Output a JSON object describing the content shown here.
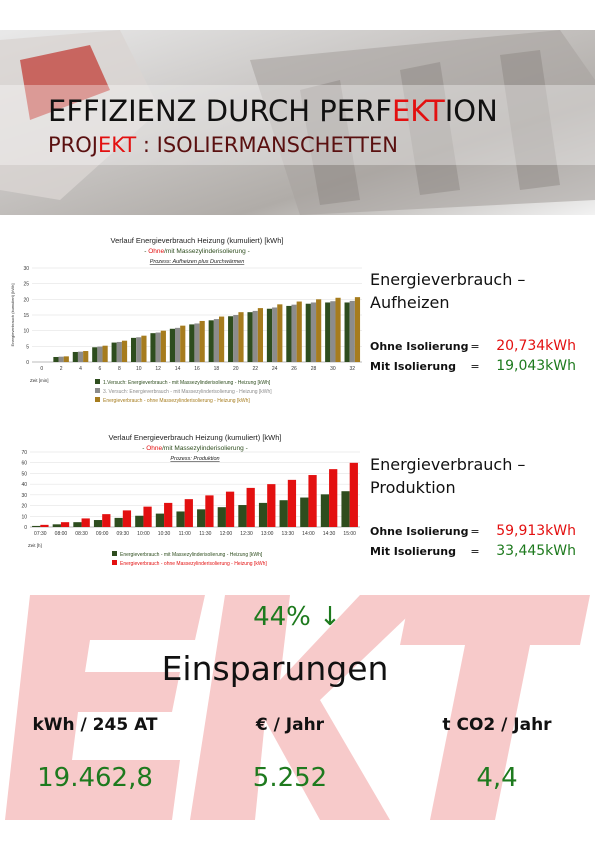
{
  "header": {
    "title_parts": [
      "EFFIZIENZ DURCH PERF",
      "EKT",
      "ION"
    ],
    "subtitle_parts": [
      "PROJ",
      "EKT",
      " : ISOLIERMANSCHETTEN"
    ]
  },
  "chart_1": {
    "type": "bar",
    "title": "Verlauf Energieverbrauch Heizung (kumuliert) [kWh]",
    "subtitle_parts": [
      "- ",
      "Ohne",
      "/mit Massezylinderisolierung -"
    ],
    "note": "Prozess: Aufheizen plus Durchwärmen",
    "x_label": "Zeit [min]",
    "y_label": "Energieverbrauch (kumuliert) [kWh]",
    "categories": [
      "0",
      "2",
      "4",
      "6",
      "8",
      "10",
      "12",
      "14",
      "16",
      "18",
      "20",
      "22",
      "24",
      "26",
      "28",
      "30",
      "32"
    ],
    "series": [
      {
        "name": "1.Versuch: Energieverbrauch - mit Massezylinderisolierung - Heizung [kWh]",
        "color": "#2e4d1e",
        "values": [
          0,
          1.6,
          3.2,
          4.7,
          6.2,
          7.7,
          9.2,
          10.6,
          12.0,
          13.3,
          14.6,
          15.9,
          17.0,
          17.9,
          18.6,
          19.0,
          19.0
        ]
      },
      {
        "name": "3. Versuch: Energieverbrauch - mit Massezylinderisolierung - Heizung [kWh]",
        "color": "#8c8c8c",
        "values": [
          0,
          1.7,
          3.3,
          4.9,
          6.4,
          7.9,
          9.4,
          10.9,
          12.3,
          13.7,
          15.0,
          16.3,
          17.4,
          18.3,
          19.0,
          19.4,
          19.5
        ]
      },
      {
        "name": "Energieverbrauch - ohne Massezylinderisolierung - Heizung [kWh]",
        "color": "#a67c1e",
        "values": [
          0,
          1.8,
          3.5,
          5.2,
          6.8,
          8.4,
          10.0,
          11.6,
          13.1,
          14.5,
          15.9,
          17.2,
          18.4,
          19.3,
          20.0,
          20.5,
          20.7
        ]
      }
    ],
    "ylim": [
      0,
      30
    ],
    "yticks": [
      0,
      5,
      10,
      15,
      20,
      25,
      30
    ],
    "grid": true
  },
  "chart_2": {
    "type": "bar",
    "title": "Verlauf Energieverbrauch Heizung (kumuliert) [kWh]",
    "subtitle_parts": [
      "- ",
      "Ohne",
      "/mit Massezylinderisolierung -"
    ],
    "note": "Prozess: Produktion",
    "x_label": "Zeit [h]",
    "categories": [
      "07:30",
      "08:00",
      "08:30",
      "09:00",
      "09:30",
      "10:00",
      "10:30",
      "11:00",
      "11:30",
      "12:00",
      "12:30",
      "13:00",
      "13:30",
      "14:00",
      "14:30",
      "15:00"
    ],
    "series": [
      {
        "name": "Energieverbrauch - mit Massezylinderisolierung - Heizung [kWh]",
        "color": "#2e4d1e",
        "values": [
          1,
          2.5,
          4.5,
          6.5,
          8.5,
          10.5,
          12.5,
          14.5,
          16.5,
          18.5,
          20.5,
          22.5,
          25,
          27.5,
          30.5,
          33.4
        ]
      },
      {
        "name": "Energieverbrauch - ohne Massezylinderisolierung - Heizung [kWh]",
        "color": "#e31010",
        "values": [
          2,
          4.5,
          8,
          12,
          15.5,
          19,
          22.5,
          26,
          29.5,
          33,
          36.5,
          40,
          44,
          48.5,
          54,
          59.9
        ]
      }
    ],
    "ylim": [
      0,
      70
    ],
    "yticks": [
      0,
      10,
      20,
      30,
      40,
      50,
      60,
      70
    ],
    "grid": true
  },
  "summary_1": {
    "heading_lines": [
      "Energieverbrauch –",
      "Aufheizen"
    ],
    "rows": [
      {
        "label": "Ohne Isolierung",
        "sign": "=",
        "value": "20,734kWh"
      },
      {
        "label": "Mit Isolierung",
        "sign": "=",
        "value": "19,043kWh"
      }
    ]
  },
  "summary_2": {
    "heading_lines": [
      "Energieverbrauch –",
      "Produktion"
    ],
    "rows": [
      {
        "label": "Ohne Isolierung",
        "sign": "=",
        "value": "59,913kWh"
      },
      {
        "label": "Mit Isolierung",
        "sign": "=",
        "value": "33,445kWh"
      }
    ]
  },
  "savings": {
    "percent": "44% ↓",
    "heading": "Einsparungen",
    "columns": [
      {
        "label": "kWh / 245 AT",
        "value": "19.462,8"
      },
      {
        "label": "€ / Jahr",
        "value": "5.252"
      },
      {
        "label": "t CO2 / Jahr",
        "value": "4,4"
      }
    ]
  }
}
